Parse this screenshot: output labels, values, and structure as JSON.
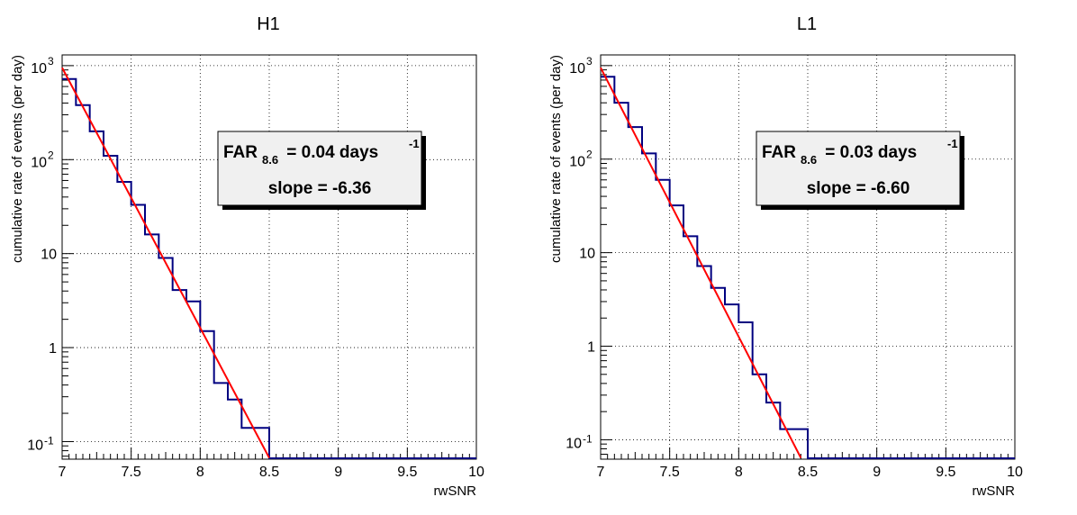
{
  "chart_data": [
    {
      "type": "line",
      "title": "H1",
      "xlabel": "rwSNR",
      "ylabel": "cumulative rate of events (per day)",
      "xlim": [
        7,
        10
      ],
      "ylim": [
        0.065,
        1300
      ],
      "yscale": "log",
      "grid": true,
      "x_ticks": [
        "7",
        "7.5",
        "8",
        "8.5",
        "9",
        "9.5",
        "10"
      ],
      "y_ticks": [
        {
          "base": "10",
          "exp": "-1",
          "value": 0.1
        },
        {
          "base": "1",
          "exp": "",
          "value": 1
        },
        {
          "base": "10",
          "exp": "",
          "value": 10
        },
        {
          "base": "10",
          "exp": "2",
          "value": 100
        },
        {
          "base": "10",
          "exp": "3",
          "value": 1000
        }
      ],
      "series": [
        {
          "kind": "step-histogram",
          "color": "#000080",
          "bin_edges": [
            7.0,
            7.1,
            7.2,
            7.3,
            7.4,
            7.5,
            7.6,
            7.7,
            7.8,
            7.9,
            8.0,
            8.1,
            8.2,
            8.3,
            8.4,
            8.5
          ],
          "values": [
            720,
            380,
            200,
            110,
            58,
            33,
            16,
            9,
            4.1,
            3.1,
            1.5,
            0.42,
            0.28,
            0.14,
            0.14
          ],
          "empty_from": 8.5
        },
        {
          "kind": "fit-line",
          "color": "#ff0000",
          "x": [
            7.0,
            8.5
          ],
          "y": [
            950,
            0.067
          ]
        }
      ],
      "annotation": {
        "far_label": "FAR",
        "far_sub": "8.6",
        "far_value": " = 0.04 days ",
        "far_sup": "-1",
        "slope_text": "slope = -6.36"
      }
    },
    {
      "type": "line",
      "title": "L1",
      "xlabel": "rwSNR",
      "ylabel": "cumulative rate of events (per day)",
      "xlim": [
        7,
        10
      ],
      "ylim": [
        0.062,
        1300
      ],
      "yscale": "log",
      "grid": true,
      "x_ticks": [
        "7",
        "7.5",
        "8",
        "8.5",
        "9",
        "9.5",
        "10"
      ],
      "y_ticks": [
        {
          "base": "10",
          "exp": "-1",
          "value": 0.1
        },
        {
          "base": "1",
          "exp": "",
          "value": 1
        },
        {
          "base": "10",
          "exp": "",
          "value": 10
        },
        {
          "base": "10",
          "exp": "2",
          "value": 100
        },
        {
          "base": "10",
          "exp": "3",
          "value": 1000
        }
      ],
      "series": [
        {
          "kind": "step-histogram",
          "color": "#000080",
          "bin_edges": [
            7.0,
            7.1,
            7.2,
            7.3,
            7.4,
            7.5,
            7.6,
            7.7,
            7.8,
            7.9,
            8.0,
            8.1,
            8.2,
            8.3,
            8.4,
            8.5
          ],
          "values": [
            760,
            400,
            220,
            115,
            60,
            32,
            15,
            7.2,
            4.2,
            2.8,
            1.8,
            0.5,
            0.25,
            0.13,
            0.13
          ],
          "empty_from": 8.5
        },
        {
          "kind": "fit-line",
          "color": "#ff0000",
          "x": [
            7.0,
            8.45
          ],
          "y": [
            950,
            0.064
          ]
        }
      ],
      "annotation": {
        "far_label": "FAR",
        "far_sub": "8.6",
        "far_value": " = 0.03 days ",
        "far_sup": "-1",
        "slope_text": "slope = -6.60"
      }
    }
  ]
}
